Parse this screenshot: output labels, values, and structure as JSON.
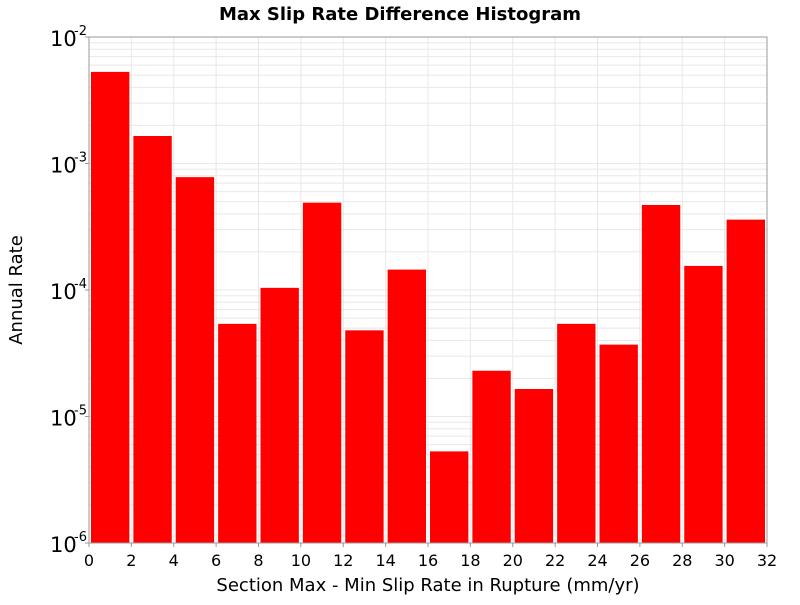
{
  "chart_data": {
    "type": "bar",
    "title": "Max Slip Rate Difference Histogram",
    "xlabel": "Section Max - Min Slip Rate in Rupture (mm/yr)",
    "ylabel": "Annual Rate",
    "y_scale": "log",
    "ylim": [
      1e-06,
      0.01
    ],
    "xlim": [
      0,
      32
    ],
    "bin_width": 2,
    "x_ticks": [
      0,
      2,
      4,
      6,
      8,
      10,
      12,
      14,
      16,
      18,
      20,
      22,
      24,
      26,
      28,
      30,
      32
    ],
    "x_tick_labels": [
      "0",
      "2",
      "4",
      "6",
      "8",
      "10",
      "12",
      "14",
      "16",
      "18",
      "20",
      "22",
      "24",
      "26",
      "28",
      "30",
      "32"
    ],
    "y_ticks": [
      1e-06,
      1e-05,
      0.0001,
      0.001,
      0.01
    ],
    "y_tick_labels": [
      {
        "base": "10",
        "exp": "-6"
      },
      {
        "base": "10",
        "exp": "-5"
      },
      {
        "base": "10",
        "exp": "-4"
      },
      {
        "base": "10",
        "exp": "-3"
      },
      {
        "base": "10",
        "exp": "-2"
      }
    ],
    "bin_starts": [
      0,
      2,
      4,
      6,
      8,
      10,
      12,
      14,
      16,
      18,
      20,
      22,
      24,
      26,
      28,
      30
    ],
    "values": [
      0.0053,
      0.00165,
      0.00078,
      5.4e-05,
      0.000104,
      0.00049,
      4.8e-05,
      0.000145,
      5.3e-06,
      2.3e-05,
      1.65e-05,
      5.4e-05,
      3.7e-05,
      0.00047,
      0.000155,
      0.00036
    ],
    "bar_color": "#ff0000",
    "grid": true,
    "grid_color": "#e8e8e8",
    "legend": false
  }
}
